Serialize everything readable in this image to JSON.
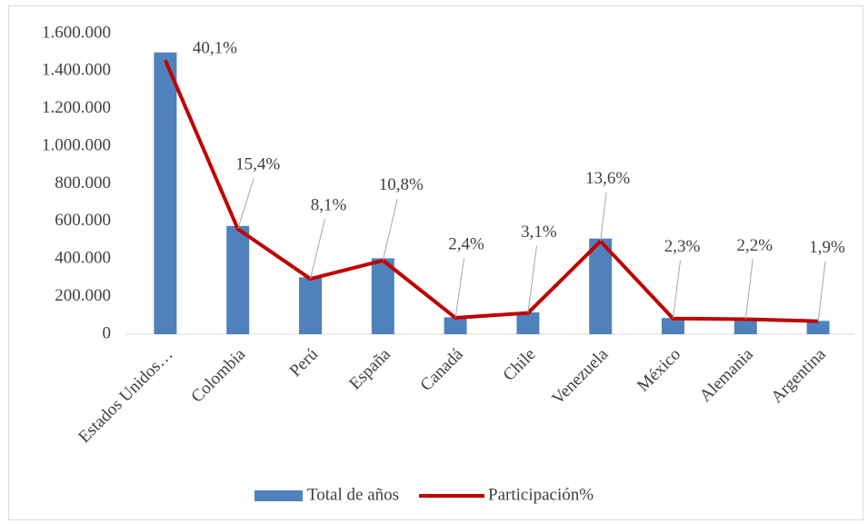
{
  "chart_data": {
    "type": "bar-line",
    "categories": [
      "Estados Unidos…",
      "Colombia",
      "Perú",
      "España",
      "Canadá",
      "Chile",
      "Venezuela",
      "México",
      "Alemania",
      "Argentina"
    ],
    "series": [
      {
        "name": "Total de años",
        "type": "bar",
        "color": "#4f81bd",
        "values": [
          1500000,
          576000,
          303000,
          404000,
          90000,
          116000,
          509000,
          86000,
          82000,
          71000
        ]
      },
      {
        "name": "Participación%",
        "type": "line",
        "axis": "y2",
        "color": "#c00000",
        "values": [
          40.1,
          15.4,
          8.1,
          10.8,
          2.4,
          3.1,
          13.6,
          2.3,
          2.2,
          1.9
        ],
        "value_labels": [
          "40,1%",
          "15,4%",
          "8,1%",
          "10,8%",
          "2,4%",
          "3,1%",
          "13,6%",
          "2,3%",
          "2,2%",
          "1,9%"
        ]
      }
    ],
    "ylim": [
      0,
      1600000
    ],
    "yticks": [
      0,
      {
        "value": 200000,
        "label": "200.000"
      },
      {
        "value": 400000,
        "label": "400.000"
      },
      {
        "value": 600000,
        "label": "600.000"
      },
      {
        "value": 800000,
        "label": "800.000"
      },
      {
        "value": 1000000,
        "label": "1.000.000"
      },
      {
        "value": 1200000,
        "label": "1.200.000"
      },
      {
        "value": 1400000,
        "label": "1.400.000"
      },
      {
        "value": 1600000,
        "label": "1.600.000"
      }
    ],
    "y2lim": [
      0,
      44
    ],
    "grid": false,
    "legend": "bottom"
  }
}
